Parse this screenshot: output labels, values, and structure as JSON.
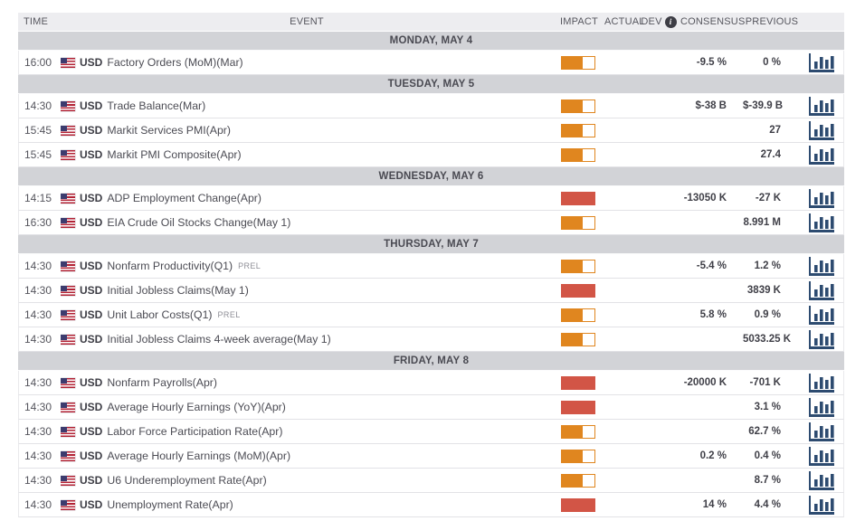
{
  "table": {
    "columns": {
      "time": "TIME",
      "event": "EVENT",
      "impact": "IMPACT",
      "actual": "ACTUAL",
      "dev": "DEV",
      "consensus": "CONSENSUS",
      "previous": "PREVIOUS"
    },
    "dev_info_icon": "i",
    "colors": {
      "impact_medium": "#e0861f",
      "impact_high": "#d25546",
      "chart_icon": "#2d4b70",
      "day_band_bg": "#d2d3d7",
      "header_bg": "#ededf0"
    },
    "groups": [
      {
        "day": "MONDAY, MAY 4",
        "rows": [
          {
            "time": "16:00",
            "currency": "USD",
            "event": "Factory Orders (MoM)(Mar)",
            "suffix": "",
            "impact": "medium",
            "actual": "",
            "consensus": "-9.5 %",
            "previous": "0 %"
          }
        ]
      },
      {
        "day": "TUESDAY, MAY 5",
        "rows": [
          {
            "time": "14:30",
            "currency": "USD",
            "event": "Trade Balance(Mar)",
            "suffix": "",
            "impact": "medium",
            "actual": "",
            "consensus": "$-38 B",
            "previous": "$-39.9 B"
          },
          {
            "time": "15:45",
            "currency": "USD",
            "event": "Markit Services PMI(Apr)",
            "suffix": "",
            "impact": "medium",
            "actual": "",
            "consensus": "",
            "previous": "27"
          },
          {
            "time": "15:45",
            "currency": "USD",
            "event": "Markit PMI Composite(Apr)",
            "suffix": "",
            "impact": "medium",
            "actual": "",
            "consensus": "",
            "previous": "27.4"
          }
        ]
      },
      {
        "day": "WEDNESDAY, MAY 6",
        "rows": [
          {
            "time": "14:15",
            "currency": "USD",
            "event": "ADP Employment Change(Apr)",
            "suffix": "",
            "impact": "high",
            "actual": "",
            "consensus": "-13050 K",
            "previous": "-27 K"
          },
          {
            "time": "16:30",
            "currency": "USD",
            "event": "EIA Crude Oil Stocks Change(May 1)",
            "suffix": "",
            "impact": "medium",
            "actual": "",
            "consensus": "",
            "previous": "8.991 M"
          }
        ]
      },
      {
        "day": "THURSDAY, MAY 7",
        "rows": [
          {
            "time": "14:30",
            "currency": "USD",
            "event": "Nonfarm Productivity(Q1)",
            "suffix": "PREL",
            "impact": "medium",
            "actual": "",
            "consensus": "-5.4 %",
            "previous": "1.2 %"
          },
          {
            "time": "14:30",
            "currency": "USD",
            "event": "Initial Jobless Claims(May 1)",
            "suffix": "",
            "impact": "high",
            "actual": "",
            "consensus": "",
            "previous": "3839 K"
          },
          {
            "time": "14:30",
            "currency": "USD",
            "event": "Unit Labor Costs(Q1)",
            "suffix": "PREL",
            "impact": "medium",
            "actual": "",
            "consensus": "5.8 %",
            "previous": "0.9 %"
          },
          {
            "time": "14:30",
            "currency": "USD",
            "event": "Initial Jobless Claims 4-week average(May 1)",
            "suffix": "",
            "impact": "medium",
            "actual": "",
            "consensus": "",
            "previous": "5033.25 K"
          }
        ]
      },
      {
        "day": "FRIDAY, MAY 8",
        "rows": [
          {
            "time": "14:30",
            "currency": "USD",
            "event": "Nonfarm Payrolls(Apr)",
            "suffix": "",
            "impact": "high",
            "actual": "",
            "consensus": "-20000 K",
            "previous": "-701 K"
          },
          {
            "time": "14:30",
            "currency": "USD",
            "event": "Average Hourly Earnings (YoY)(Apr)",
            "suffix": "",
            "impact": "high",
            "actual": "",
            "consensus": "",
            "previous": "3.1 %"
          },
          {
            "time": "14:30",
            "currency": "USD",
            "event": "Labor Force Participation Rate(Apr)",
            "suffix": "",
            "impact": "medium",
            "actual": "",
            "consensus": "",
            "previous": "62.7 %"
          },
          {
            "time": "14:30",
            "currency": "USD",
            "event": "Average Hourly Earnings (MoM)(Apr)",
            "suffix": "",
            "impact": "medium",
            "actual": "",
            "consensus": "0.2 %",
            "previous": "0.4 %"
          },
          {
            "time": "14:30",
            "currency": "USD",
            "event": "U6 Underemployment Rate(Apr)",
            "suffix": "",
            "impact": "medium",
            "actual": "",
            "consensus": "",
            "previous": "8.7 %"
          },
          {
            "time": "14:30",
            "currency": "USD",
            "event": "Unemployment Rate(Apr)",
            "suffix": "",
            "impact": "high",
            "actual": "",
            "consensus": "14 %",
            "previous": "4.4 %"
          }
        ]
      }
    ]
  }
}
